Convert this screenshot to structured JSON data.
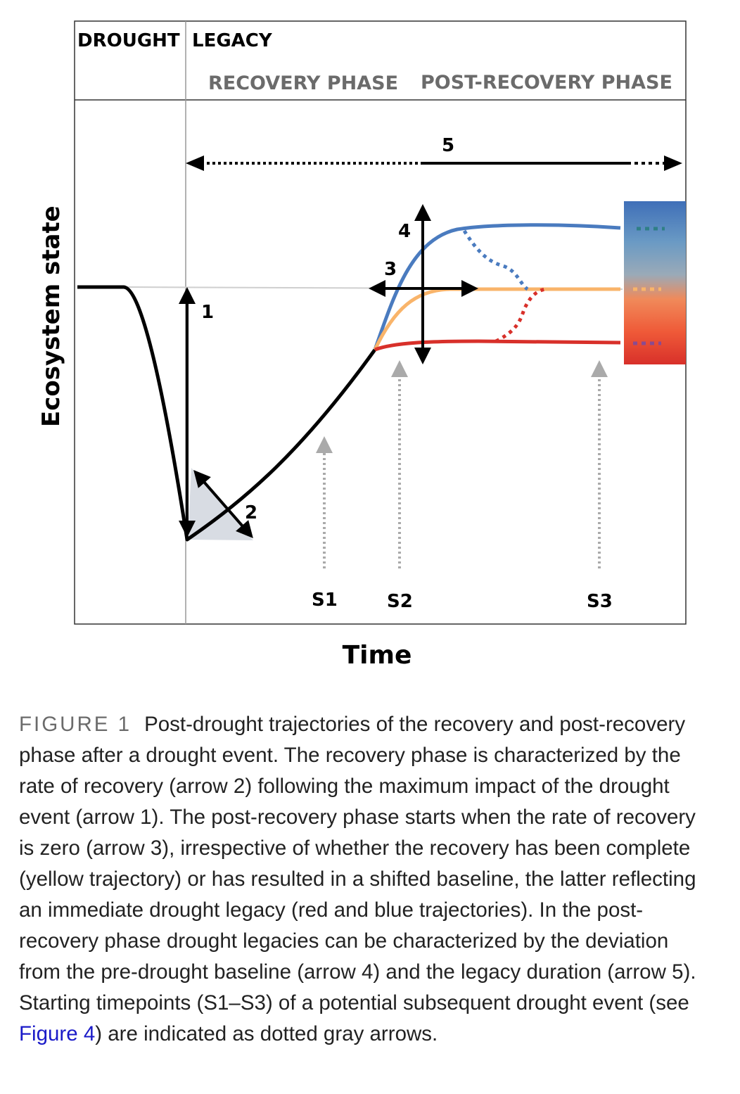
{
  "header": {
    "drought": "DROUGHT",
    "legacy": "LEGACY",
    "recovery_phase": "RECOVERY PHASE",
    "post_recovery_phase": "POST-RECOVERY PHASE"
  },
  "axes": {
    "ylabel": "Ecosystem state",
    "xlabel": "Time"
  },
  "arrow_labels": {
    "a1": "1",
    "a2": "2",
    "a3": "3",
    "a4": "4",
    "a5": "5"
  },
  "start_points": {
    "s1": "S1",
    "s2": "S2",
    "s3": "S3"
  },
  "colors": {
    "blue": "#4a7bbf",
    "yellow": "#f9b46a",
    "red": "#d8302a",
    "gray_arrow": "#aaaaaa",
    "triangle": "#d8dce3"
  },
  "caption": {
    "label": "FIGURE 1",
    "text_before_link": "Post-drought trajectories of the recovery and post-recovery phase after a drought event. The recovery phase is characterized by the rate of recovery (arrow 2) following the maximum impact of the drought event (arrow 1). The post-recovery phase starts when the rate of recovery is zero (arrow 3), irrespective of whether the recovery has been complete (yellow trajectory) or has resulted in a shifted baseline, the latter reflecting an immediate drought legacy (red and blue trajectories). In the post-recovery phase drought legacies can be characterized by the deviation from the pre-drought baseline (arrow 4) and the legacy duration (arrow 5). Starting timepoints (S1–S3) of a potential subsequent drought event (see ",
    "link_text": "Figure 4",
    "text_after_link": ") are indicated as dotted gray arrows."
  }
}
